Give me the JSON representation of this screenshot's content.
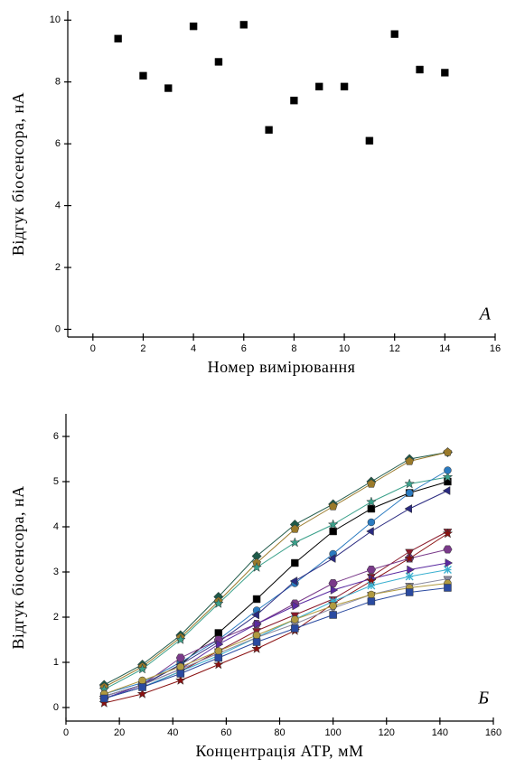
{
  "chart_data": [
    {
      "type": "scatter",
      "xlabel": "Номер вимірювання",
      "ylabel": "Відгук біосенсора, нА",
      "annotation": "А",
      "x": [
        1,
        2,
        3,
        4,
        5,
        6,
        7,
        8,
        9,
        10,
        11,
        12,
        13,
        14
      ],
      "values": [
        9.4,
        8.2,
        7.8,
        9.8,
        8.65,
        9.85,
        6.45,
        7.4,
        7.85,
        7.85,
        6.1,
        9.55,
        8.4,
        8.3
      ],
      "color": "#000000",
      "marker": "square",
      "xlim": [
        -1,
        16
      ],
      "xticks": [
        0,
        2,
        4,
        6,
        8,
        10,
        12,
        14,
        16
      ],
      "ylim": [
        -0.25,
        10.3
      ],
      "yticks": [
        0,
        2,
        4,
        6,
        8,
        10
      ]
    },
    {
      "type": "line",
      "xlabel": "Концентрація АТР, мМ",
      "ylabel": "Відгук біосенсора, нА",
      "annotation": "Б",
      "x": [
        14.3,
        28.6,
        42.9,
        57.1,
        71.4,
        85.7,
        100,
        114.3,
        128.6,
        142.9
      ],
      "series": [
        {
          "color": "#000000",
          "marker": "square",
          "values": [
            0.25,
            0.5,
            0.95,
            1.65,
            2.4,
            3.2,
            3.9,
            4.4,
            4.75,
            5.0
          ]
        },
        {
          "color": "#1f5a4a",
          "marker": "diamond",
          "values": [
            0.5,
            0.95,
            1.6,
            2.45,
            3.35,
            4.05,
            4.5,
            5.0,
            5.5,
            5.65
          ]
        },
        {
          "color": "#9a7a2a",
          "marker": "pentagon",
          "values": [
            0.45,
            0.9,
            1.55,
            2.35,
            3.2,
            3.95,
            4.45,
            4.95,
            5.45,
            5.65
          ]
        },
        {
          "color": "#3aa08a",
          "marker": "star",
          "values": [
            0.4,
            0.85,
            1.5,
            2.3,
            3.1,
            3.65,
            4.05,
            4.55,
            4.95,
            5.1
          ]
        },
        {
          "color": "#2a7ac0",
          "marker": "circle",
          "values": [
            0.3,
            0.55,
            1.0,
            1.5,
            2.15,
            2.75,
            3.4,
            4.1,
            4.75,
            5.25
          ]
        },
        {
          "color": "#2a2a80",
          "marker": "triangle-left",
          "values": [
            0.25,
            0.5,
            0.95,
            1.45,
            2.05,
            2.8,
            3.3,
            3.9,
            4.4,
            4.8
          ]
        },
        {
          "color": "#8a1a2a",
          "marker": "triangle-down",
          "values": [
            0.2,
            0.45,
            0.8,
            1.25,
            1.7,
            2.05,
            2.4,
            2.9,
            3.45,
            3.9
          ]
        },
        {
          "color": "#7a3a8a",
          "marker": "hexagon",
          "values": [
            0.2,
            0.5,
            1.1,
            1.5,
            1.85,
            2.3,
            2.75,
            3.05,
            3.3,
            3.5
          ]
        },
        {
          "color": "#5a2aa0",
          "marker": "triangle-right",
          "values": [
            0.2,
            0.5,
            0.85,
            1.4,
            1.85,
            2.25,
            2.6,
            2.85,
            3.05,
            3.2
          ]
        },
        {
          "color": "#8a1010",
          "marker": "star",
          "values": [
            0.1,
            0.3,
            0.6,
            0.95,
            1.3,
            1.7,
            2.3,
            2.8,
            3.3,
            3.85
          ]
        },
        {
          "color": "#3ab0d0",
          "marker": "cross",
          "values": [
            0.2,
            0.45,
            0.8,
            1.15,
            1.55,
            1.95,
            2.35,
            2.7,
            2.9,
            3.05
          ]
        },
        {
          "color": "#8a8aa0",
          "marker": "triangle-down",
          "values": [
            0.25,
            0.5,
            0.85,
            1.2,
            1.55,
            1.85,
            2.2,
            2.5,
            2.7,
            2.85
          ]
        },
        {
          "color": "#b09a40",
          "marker": "circle",
          "values": [
            0.3,
            0.6,
            0.9,
            1.25,
            1.6,
            1.95,
            2.25,
            2.5,
            2.65,
            2.75
          ]
        },
        {
          "color": "#2a4aa0",
          "marker": "square",
          "values": [
            0.2,
            0.45,
            0.75,
            1.1,
            1.45,
            1.75,
            2.05,
            2.35,
            2.55,
            2.65
          ]
        }
      ],
      "xlim": [
        0,
        160
      ],
      "xticks": [
        0,
        20,
        40,
        60,
        80,
        100,
        120,
        140,
        160
      ],
      "ylim": [
        -0.3,
        6.5
      ],
      "yticks": [
        0,
        1,
        2,
        3,
        4,
        5,
        6
      ]
    }
  ]
}
